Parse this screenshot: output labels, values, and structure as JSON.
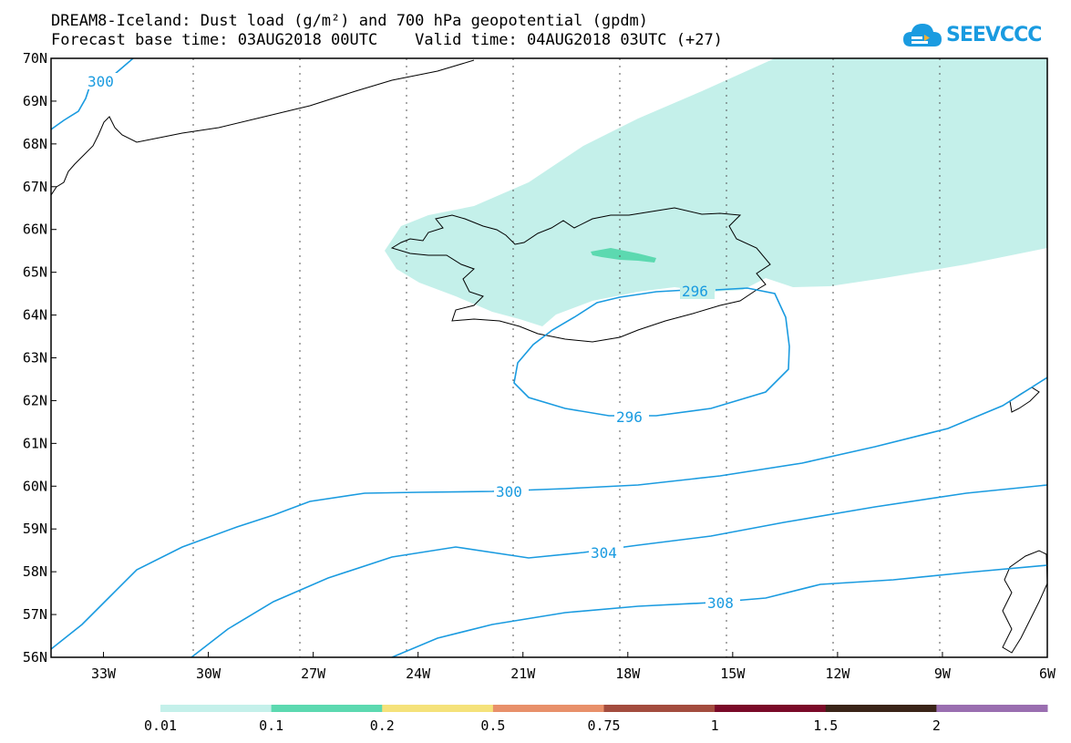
{
  "title": {
    "line1": "DREAM8-Iceland: Dust load (g/m²) and 700 hPa geopotential (gpdm)",
    "line2": "Forecast base time: 03AUG2018 00UTC    Valid time: 04AUG2018 03UTC (+27)"
  },
  "logo": {
    "text": "SEEVCCC",
    "icon": "cloud-icon",
    "color": "#1a9be0"
  },
  "map": {
    "lon_range": [
      -34.5,
      -6
    ],
    "lat_range": [
      56,
      70
    ],
    "lon_ticks": [
      "33W",
      "30W",
      "27W",
      "24W",
      "21W",
      "18W",
      "15W",
      "12W",
      "9W",
      "6W"
    ],
    "lat_ticks": [
      "70N",
      "69N",
      "68N",
      "67N",
      "66N",
      "65N",
      "64N",
      "63N",
      "62N",
      "61N",
      "60N",
      "59N",
      "58N",
      "57N",
      "56N"
    ],
    "contour_color": "#1a9be0",
    "contour_labels": [
      "300",
      "296",
      "296",
      "300",
      "304",
      "308"
    ]
  },
  "colorbar": {
    "labels": [
      "0.01",
      "0.1",
      "0.2",
      "0.5",
      "0.75",
      "1",
      "1.5",
      "2"
    ],
    "colors": [
      "#c4f0ea",
      "#5cd9b0",
      "#f5e27a",
      "#e8906a",
      "#a34c3e",
      "#7a0a28",
      "#3a2418",
      "#9a6eb0"
    ]
  }
}
